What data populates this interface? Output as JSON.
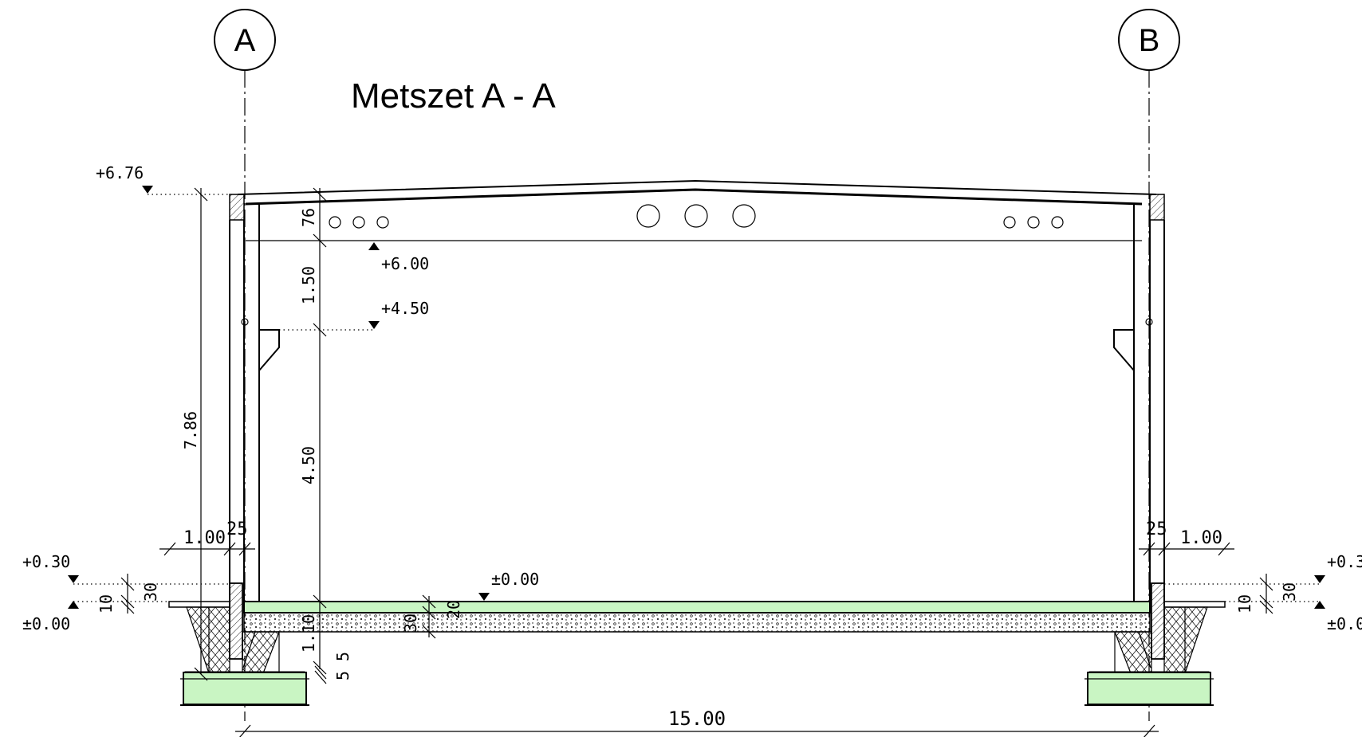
{
  "drawing": {
    "title": "Metszet A - A",
    "grid_axes": {
      "left": "A",
      "right": "B"
    },
    "levels": {
      "top": "+6.76",
      "beam_bottom": "+6.00",
      "corbel": "+4.50",
      "floor": "±0.00",
      "ground_left_upper": "+0.30",
      "ground_left_lower": "±0.00",
      "ground_right_upper": "+0.3",
      "ground_right_lower": "±0.0"
    },
    "dimensions": {
      "total_height": "7.86",
      "beam_depth": "76",
      "beam_to_corbel": "1.50",
      "corbel_height": "4.50",
      "left_offset": "1.00",
      "left_column_width": "25",
      "right_column_width": "25",
      "right_offset": "1.00",
      "left_step_30": "30",
      "left_step_10": "10",
      "right_step_30": "30",
      "right_step_10": "10",
      "slab_20": "20",
      "subbase_30": "30",
      "foundation_depth": "1.10",
      "small_5a": "5",
      "small_5b": "5",
      "span": "15.00"
    },
    "colors": {
      "fill_green": "#c9f5c3",
      "line": "#000000"
    }
  }
}
